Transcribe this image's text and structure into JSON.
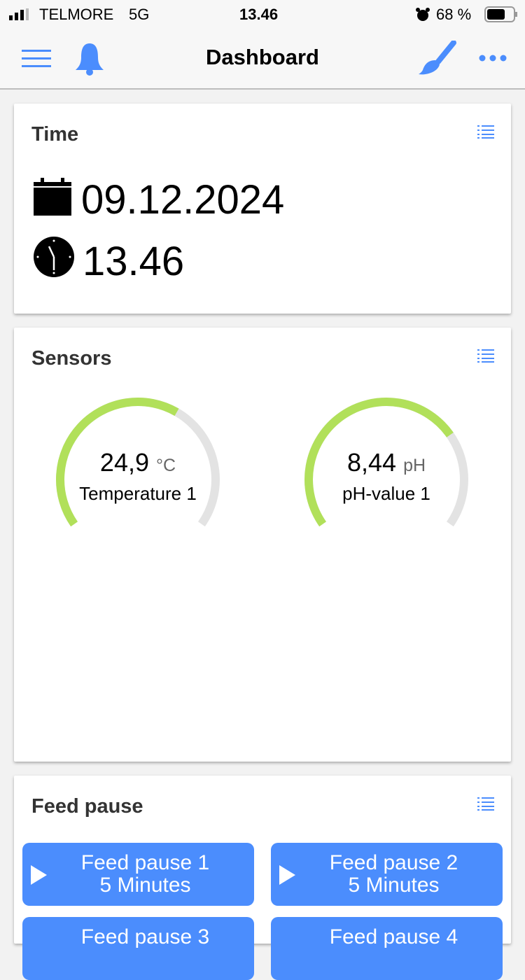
{
  "status_bar": {
    "carrier": "TELMORE",
    "network": "5G",
    "time": "13.46",
    "battery": "68 %",
    "battery_level": 0.68
  },
  "nav": {
    "title": "Dashboard",
    "icons": [
      "menu-icon",
      "bell-icon",
      "brush-icon",
      "more-icon"
    ]
  },
  "time_card": {
    "title": "Time",
    "date": "09.12.2024",
    "time": "13.46"
  },
  "sensors_card": {
    "title": "Sensors",
    "gauges": [
      {
        "value": "24,9",
        "unit": "°C",
        "label": "Temperature 1",
        "fill": 0.62,
        "color": "#b1e05a"
      },
      {
        "value": "8,44",
        "unit": "pH",
        "label": "pH-value 1",
        "fill": 0.72,
        "color": "#b1e05a"
      }
    ]
  },
  "feed_card": {
    "title": "Feed pause",
    "buttons": [
      {
        "label": "Feed pause 1",
        "duration": "5 Minutes"
      },
      {
        "label": "Feed pause 2",
        "duration": "5 Minutes"
      },
      {
        "label": "Feed pause 3",
        "duration": ""
      },
      {
        "label": "Feed pause 4",
        "duration": ""
      }
    ]
  },
  "colors": {
    "accent": "#4b8dfd",
    "gauge_track": "#e3e3e3"
  }
}
